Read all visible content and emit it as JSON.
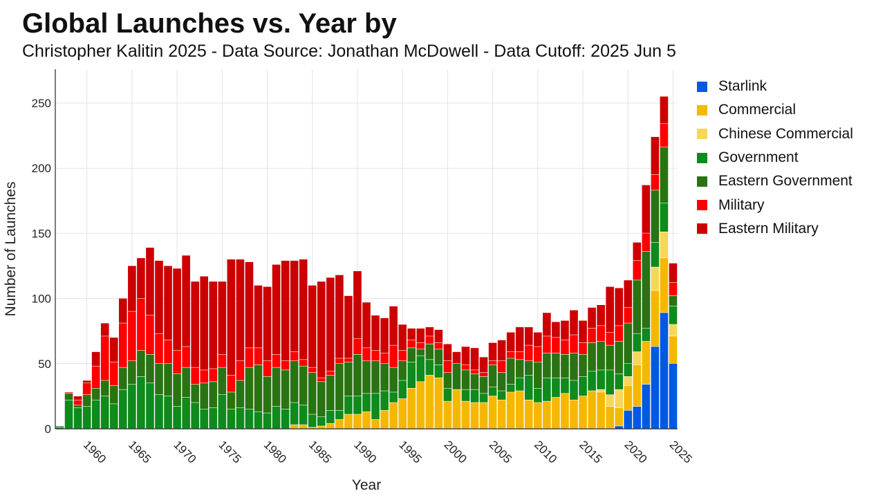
{
  "chart_data": {
    "type": "bar",
    "stacked": true,
    "title": "Global Launches vs. Year by",
    "subtitle": "Christopher Kalitin 2025 - Data Source: Jonathan McDowell - Data Cutoff: 2025 Jun 5",
    "xlabel": "Year",
    "ylabel": "Number of Launches",
    "ylim": [
      0,
      276
    ],
    "xlim": [
      1956.5,
      2025.5
    ],
    "x_ticks": [
      1960,
      1965,
      1970,
      1975,
      1980,
      1985,
      1990,
      1995,
      2000,
      2005,
      2010,
      2015,
      2020,
      2025
    ],
    "y_ticks": [
      0,
      50,
      100,
      150,
      200,
      250
    ],
    "grid": true,
    "legend_position": "right",
    "years": [
      1957,
      1958,
      1959,
      1960,
      1961,
      1962,
      1963,
      1964,
      1965,
      1966,
      1967,
      1968,
      1969,
      1970,
      1971,
      1972,
      1973,
      1974,
      1975,
      1976,
      1977,
      1978,
      1979,
      1980,
      1981,
      1982,
      1983,
      1984,
      1985,
      1986,
      1987,
      1988,
      1989,
      1990,
      1991,
      1992,
      1993,
      1994,
      1995,
      1996,
      1997,
      1998,
      1999,
      2000,
      2001,
      2002,
      2003,
      2004,
      2005,
      2006,
      2007,
      2008,
      2009,
      2010,
      2011,
      2012,
      2013,
      2014,
      2015,
      2016,
      2017,
      2018,
      2019,
      2020,
      2021,
      2022,
      2023,
      2024,
      2025
    ],
    "series": [
      {
        "name": "Starlink",
        "color": "#0059e0",
        "values": [
          0,
          0,
          0,
          0,
          0,
          0,
          0,
          0,
          0,
          0,
          0,
          0,
          0,
          0,
          0,
          0,
          0,
          0,
          0,
          0,
          0,
          0,
          0,
          0,
          0,
          0,
          0,
          0,
          0,
          0,
          0,
          0,
          0,
          0,
          0,
          0,
          0,
          0,
          0,
          0,
          0,
          0,
          0,
          0,
          0,
          0,
          0,
          0,
          0,
          0,
          0,
          0,
          0,
          0,
          0,
          0,
          0,
          0,
          0,
          0,
          0,
          0,
          2,
          14,
          17,
          34,
          63,
          89,
          50
        ]
      },
      {
        "name": "Commercial",
        "color": "#f5b800",
        "values": [
          0,
          0,
          0,
          0,
          0,
          0,
          0,
          0,
          0,
          0,
          0,
          0,
          0,
          0,
          0,
          0,
          0,
          0,
          0,
          0,
          0,
          0,
          0,
          0,
          0,
          0,
          3,
          3,
          1,
          2,
          4,
          7,
          11,
          11,
          13,
          7,
          14,
          20,
          23,
          31,
          36,
          41,
          39,
          21,
          30,
          21,
          20,
          20,
          25,
          22,
          28,
          29,
          22,
          20,
          21,
          24,
          27,
          22,
          25,
          29,
          28,
          17,
          14,
          19,
          32,
          33,
          43,
          42,
          21
        ]
      },
      {
        "name": "Chinese Commercial",
        "color": "#f5d75a",
        "values": [
          0,
          0,
          0,
          0,
          0,
          0,
          0,
          0,
          0,
          0,
          0,
          0,
          0,
          0,
          0,
          0,
          0,
          0,
          0,
          0,
          0,
          0,
          0,
          0,
          0,
          0,
          0,
          0,
          0,
          0,
          0,
          0,
          0,
          0,
          0,
          0,
          0,
          0,
          0,
          0,
          0,
          0,
          0,
          0,
          0,
          0,
          0,
          0,
          0,
          0,
          0,
          0,
          0,
          0,
          0,
          0,
          0,
          0,
          0,
          0,
          2,
          9,
          14,
          7,
          10,
          0,
          18,
          20,
          9
        ]
      },
      {
        "name": "Government",
        "color": "#0f8a1c",
        "values": [
          1,
          22,
          16,
          17,
          22,
          25,
          19,
          30,
          34,
          40,
          35,
          26,
          25,
          17,
          24,
          20,
          15,
          16,
          26,
          15,
          16,
          15,
          13,
          12,
          17,
          15,
          17,
          15,
          10,
          7,
          10,
          7,
          14,
          14,
          14,
          20,
          15,
          8,
          14,
          20,
          20,
          12,
          10,
          10,
          0,
          9,
          10,
          7,
          7,
          7,
          6,
          10,
          19,
          11,
          18,
          15,
          12,
          15,
          15,
          15,
          15,
          19,
          12,
          10,
          14,
          10,
          19,
          22,
          14
        ]
      },
      {
        "name": "Eastern Government",
        "color": "#2a7313",
        "values": [
          1,
          5,
          2,
          9,
          9,
          12,
          14,
          17,
          18,
          20,
          22,
          24,
          25,
          25,
          23,
          14,
          20,
          20,
          21,
          13,
          21,
          32,
          36,
          28,
          30,
          30,
          32,
          30,
          32,
          27,
          27,
          36,
          26,
          32,
          25,
          25,
          21,
          19,
          15,
          11,
          5,
          12,
          12,
          12,
          20,
          15,
          12,
          13,
          17,
          14,
          20,
          14,
          11,
          20,
          19,
          19,
          18,
          21,
          17,
          22,
          22,
          19,
          25,
          31,
          41,
          59,
          40,
          43,
          8
        ]
      },
      {
        "name": "Military",
        "color": "#ff0000",
        "values": [
          0,
          1,
          4,
          9,
          17,
          34,
          18,
          34,
          38,
          40,
          30,
          23,
          18,
          18,
          16,
          13,
          10,
          10,
          10,
          13,
          15,
          15,
          13,
          12,
          10,
          7,
          7,
          5,
          4,
          3,
          3,
          4,
          3,
          12,
          10,
          8,
          8,
          17,
          8,
          6,
          5,
          6,
          5,
          9,
          0,
          4,
          3,
          3,
          3,
          9,
          5,
          6,
          12,
          12,
          13,
          12,
          11,
          14,
          9,
          11,
          12,
          10,
          12,
          12,
          15,
          14,
          12,
          18,
          10
        ]
      },
      {
        "name": "Eastern Military",
        "color": "#cc0000",
        "values": [
          0,
          0,
          3,
          2,
          11,
          10,
          19,
          19,
          35,
          31,
          52,
          56,
          57,
          63,
          70,
          66,
          72,
          67,
          56,
          89,
          78,
          66,
          48,
          57,
          69,
          77,
          70,
          77,
          63,
          74,
          72,
          64,
          48,
          52,
          35,
          27,
          27,
          30,
          20,
          9,
          11,
          7,
          10,
          13,
          9,
          14,
          17,
          12,
          14,
          16,
          15,
          19,
          14,
          11,
          18,
          12,
          15,
          19,
          17,
          16,
          16,
          35,
          29,
          21,
          14,
          37,
          29,
          21,
          15
        ]
      }
    ]
  }
}
